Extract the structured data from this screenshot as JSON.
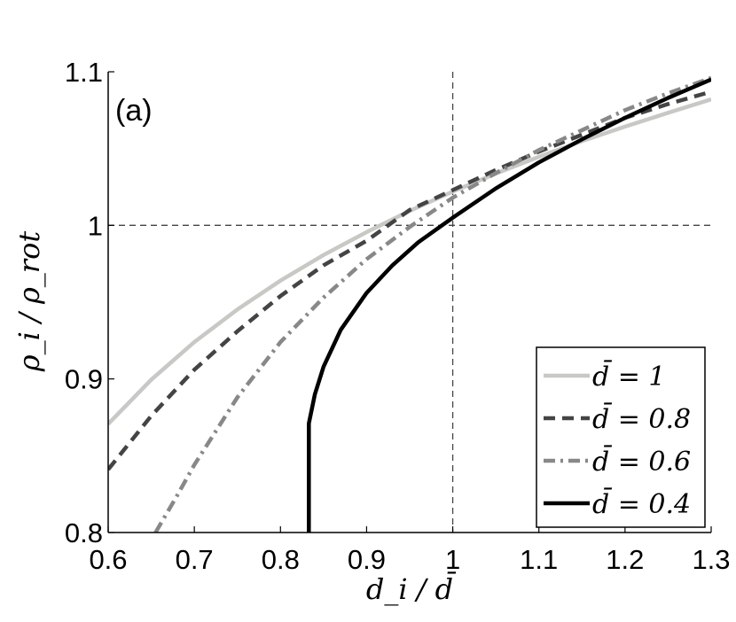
{
  "chart_data": {
    "type": "line",
    "panel_label": "(a)",
    "xlabel": "d_i / d̄",
    "ylabel": "ρ_i / ρ_rot",
    "xlim": [
      0.6,
      1.3
    ],
    "ylim": [
      0.8,
      1.1
    ],
    "xticks": [
      "0.6",
      "0.7",
      "0.8",
      "0.9",
      "1",
      "1.1",
      "1.2",
      "1.3"
    ],
    "yticks": [
      "0.8",
      "0.9",
      "1",
      "1.1"
    ],
    "reference_lines": {
      "x": 1,
      "y": 1,
      "style": "dashed"
    },
    "grid": false,
    "legend_position": "bottom-right",
    "series": [
      {
        "name": "d̄ = 1",
        "color": "#c8c8c4",
        "dash": "solid",
        "x": [
          0.6,
          0.65,
          0.7,
          0.75,
          0.8,
          0.85,
          0.9,
          0.95,
          1.0,
          1.05,
          1.1,
          1.15,
          1.2,
          1.25,
          1.3
        ],
        "y": [
          0.8707,
          0.8995,
          0.924,
          0.9452,
          0.964,
          0.9807,
          0.9956,
          1.0094,
          1.022,
          1.0337,
          1.0446,
          1.0548,
          1.0643,
          1.0733,
          1.082
        ]
      },
      {
        "name": "d̄ = 0.8",
        "color": "#444444",
        "dash": "dash",
        "x": [
          0.6,
          0.65,
          0.7,
          0.75,
          0.8,
          0.85,
          0.9,
          0.95,
          1.0,
          1.05,
          1.1,
          1.15,
          1.2,
          1.25,
          1.3
        ],
        "y": [
          0.841,
          0.876,
          0.906,
          0.931,
          0.954,
          0.974,
          0.99,
          1.01,
          1.023,
          1.036,
          1.048,
          1.059,
          1.07,
          1.079,
          1.087
        ]
      },
      {
        "name": "d̄ = 0.6",
        "color": "#888888",
        "dash": "dashdot",
        "x": [
          0.655,
          0.68,
          0.7,
          0.75,
          0.8,
          0.85,
          0.9,
          0.95,
          1.0,
          1.05,
          1.1,
          1.15,
          1.2,
          1.25,
          1.3
        ],
        "y": [
          0.8,
          0.824,
          0.844,
          0.888,
          0.924,
          0.953,
          0.978,
          0.999,
          1.018,
          1.034,
          1.049,
          1.062,
          1.075,
          1.086,
          1.096
        ]
      },
      {
        "name": "d̄ = 0.4",
        "color": "#000000",
        "dash": "solid",
        "x": [
          0.833,
          0.833,
          0.84,
          0.85,
          0.87,
          0.9,
          0.93,
          0.96,
          1.0,
          1.05,
          1.1,
          1.15,
          1.2,
          1.25,
          1.3
        ],
        "y": [
          0.8,
          0.871,
          0.89,
          0.908,
          0.932,
          0.956,
          0.974,
          0.989,
          1.005,
          1.024,
          1.041,
          1.056,
          1.07,
          1.083,
          1.095
        ]
      }
    ]
  }
}
